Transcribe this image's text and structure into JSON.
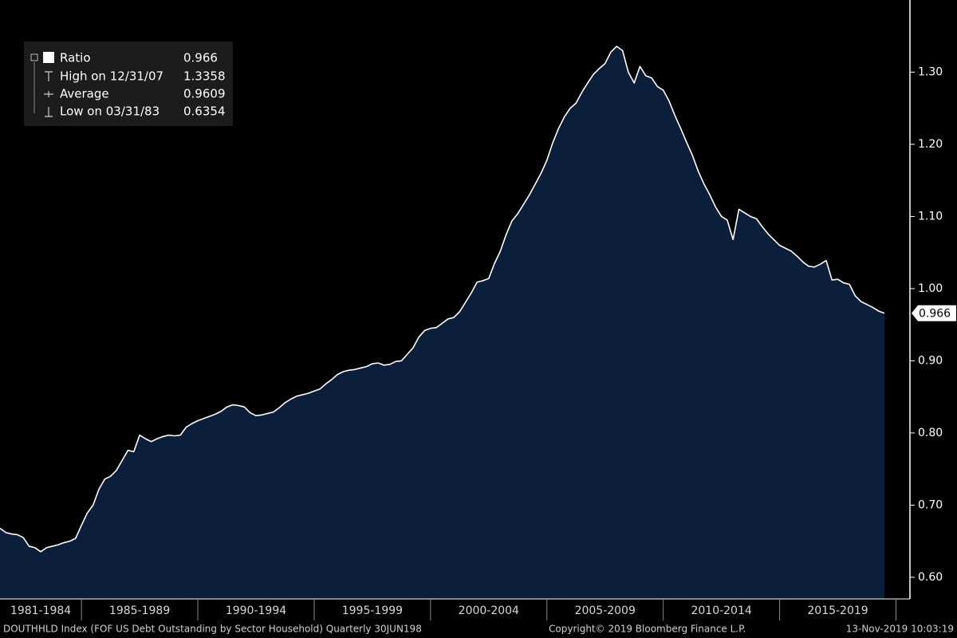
{
  "chart_data": {
    "type": "area",
    "series": [
      {
        "name": "Ratio",
        "color": "#ffffff",
        "fill": "#0b1f3a",
        "values": [
          0.668,
          0.662,
          0.66,
          0.659,
          0.655,
          0.643,
          0.641,
          0.6354,
          0.641,
          0.643,
          0.645,
          0.648,
          0.65,
          0.654,
          0.672,
          0.689,
          0.7,
          0.722,
          0.736,
          0.74,
          0.748,
          0.762,
          0.776,
          0.774,
          0.797,
          0.792,
          0.788,
          0.792,
          0.795,
          0.797,
          0.796,
          0.797,
          0.808,
          0.813,
          0.817,
          0.82,
          0.823,
          0.826,
          0.83,
          0.836,
          0.839,
          0.838,
          0.836,
          0.828,
          0.824,
          0.825,
          0.827,
          0.829,
          0.835,
          0.842,
          0.847,
          0.851,
          0.853,
          0.855,
          0.858,
          0.861,
          0.868,
          0.874,
          0.881,
          0.885,
          0.887,
          0.888,
          0.89,
          0.892,
          0.896,
          0.897,
          0.894,
          0.895,
          0.899,
          0.9,
          0.909,
          0.918,
          0.933,
          0.942,
          0.945,
          0.946,
          0.952,
          0.958,
          0.96,
          0.968,
          0.981,
          0.994,
          1.009,
          1.011,
          1.014,
          1.035,
          1.052,
          1.075,
          1.094,
          1.104,
          1.117,
          1.13,
          1.145,
          1.16,
          1.178,
          1.202,
          1.222,
          1.238,
          1.25,
          1.257,
          1.272,
          1.285,
          1.297,
          1.305,
          1.312,
          1.328,
          1.3358,
          1.33,
          1.3,
          1.285,
          1.308,
          1.295,
          1.292,
          1.28,
          1.275,
          1.26,
          1.24,
          1.222,
          1.203,
          1.185,
          1.163,
          1.145,
          1.13,
          1.113,
          1.1,
          1.095,
          1.068,
          1.11,
          1.105,
          1.1,
          1.097,
          1.086,
          1.076,
          1.068,
          1.06,
          1.056,
          1.052,
          1.045,
          1.037,
          1.031,
          1.03,
          1.034,
          1.039,
          1.012,
          1.013,
          1.008,
          1.006,
          0.99,
          0.982,
          0.978,
          0.974,
          0.969,
          0.966
        ]
      }
    ],
    "x": [
      1981.5,
      1981.75,
      1982,
      1982.25,
      1982.5,
      1982.75,
      1983,
      1983.25,
      1983.5,
      1983.75,
      1984,
      1984.25,
      1984.5,
      1984.75,
      1985,
      1985.25,
      1985.5,
      1985.75,
      1986,
      1986.25,
      1986.5,
      1986.75,
      1987,
      1987.25,
      1987.5,
      1987.75,
      1988,
      1988.25,
      1988.5,
      1988.75,
      1989,
      1989.25,
      1989.5,
      1989.75,
      1990,
      1990.25,
      1990.5,
      1990.75,
      1991,
      1991.25,
      1991.5,
      1991.75,
      1992,
      1992.25,
      1992.5,
      1992.75,
      1993,
      1993.25,
      1993.5,
      1993.75,
      1994,
      1994.25,
      1994.5,
      1994.75,
      1995,
      1995.25,
      1995.5,
      1995.75,
      1996,
      1996.25,
      1996.5,
      1996.75,
      1997,
      1997.25,
      1997.5,
      1997.75,
      1998,
      1998.25,
      1998.5,
      1998.75,
      1999,
      1999.25,
      1999.5,
      1999.75,
      2000,
      2000.25,
      2000.5,
      2000.75,
      2001,
      2001.25,
      2001.5,
      2001.75,
      2002,
      2002.25,
      2002.5,
      2002.75,
      2003,
      2003.25,
      2003.5,
      2003.75,
      2004,
      2004.25,
      2004.5,
      2004.75,
      2005,
      2005.25,
      2005.5,
      2005.75,
      2006,
      2006.25,
      2006.5,
      2006.75,
      2007,
      2007.25,
      2007.5,
      2007.75,
      2008,
      2008.25,
      2008.5,
      2008.75,
      2009,
      2009.25,
      2009.5,
      2009.75,
      2010,
      2010.25,
      2010.5,
      2010.75,
      2011,
      2011.25,
      2011.5,
      2011.75,
      2012,
      2012.25,
      2012.5,
      2012.75,
      2013,
      2013.25,
      2013.5,
      2013.75,
      2014,
      2014.25,
      2014.5,
      2014.75,
      2015,
      2015.25,
      2015.5,
      2015.75,
      2016,
      2016.25,
      2016.5,
      2016.75,
      2017,
      2017.25,
      2017.5,
      2017.75,
      2018,
      2018.25,
      2018.5,
      2018.75,
      2019,
      2019.25,
      2019.5
    ],
    "xlim": [
      1981.5,
      2020.6
    ],
    "xbands": [
      {
        "label": "1981-1984",
        "from": 1981,
        "to": 1985
      },
      {
        "label": "1985-1989",
        "from": 1985,
        "to": 1990
      },
      {
        "label": "1990-1994",
        "from": 1990,
        "to": 1995
      },
      {
        "label": "1995-1999",
        "from": 1995,
        "to": 2000
      },
      {
        "label": "2000-2004",
        "from": 2000,
        "to": 2005
      },
      {
        "label": "2005-2009",
        "from": 2005,
        "to": 2010
      },
      {
        "label": "2010-2014",
        "from": 2010,
        "to": 2015
      },
      {
        "label": "2015-2019",
        "from": 2015,
        "to": 2020
      }
    ],
    "ylim": [
      0.57,
      1.4
    ],
    "yticks": [
      {
        "value": 0.6,
        "label": "0.60"
      },
      {
        "value": 0.7,
        "label": "0.70"
      },
      {
        "value": 0.8,
        "label": "0.80"
      },
      {
        "value": 0.9,
        "label": "0.90"
      },
      {
        "value": 1.0,
        "label": "1.00"
      },
      {
        "value": 1.1,
        "label": "1.10"
      },
      {
        "value": 1.2,
        "label": "1.20"
      },
      {
        "value": 1.3,
        "label": "1.30"
      }
    ],
    "y_axis_side": "right",
    "grid": false,
    "legend_position": "upper left",
    "stats": [
      {
        "label": "High on 12/31/07",
        "value": 1.3358
      },
      {
        "label": "Average",
        "value": 0.9609
      },
      {
        "label": "Low on 03/31/83",
        "value": 0.6354
      }
    ],
    "footer": {
      "source": "DOUTHHLD Index (FOF US Debt Outstanding by Sector Household)  Quarterly 30JUN198",
      "copyright": "Copyright© 2019 Bloomberg Finance L.P.",
      "timestamp": "13-Nov-2019 10:03:19"
    }
  }
}
